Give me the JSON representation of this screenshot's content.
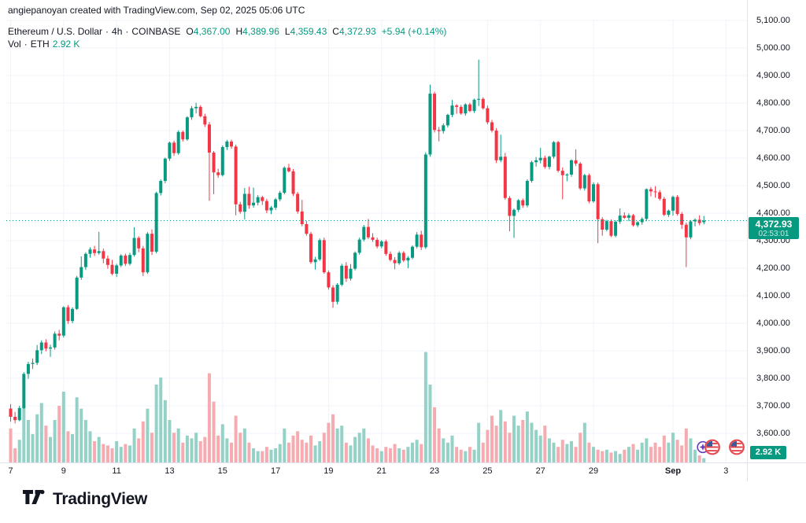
{
  "watermark": "angiepanoyan created with TradingView.com, Sep 02, 2025 05:06 UTC",
  "legend": {
    "symbol": "Ethereum / U.S. Dollar",
    "separator": "·",
    "interval": "4h",
    "exchange": "COINBASE",
    "ohlc": [
      {
        "k": "O",
        "v": "4,367.00"
      },
      {
        "k": "H",
        "v": "4,389.96"
      },
      {
        "k": "L",
        "v": "4,359.43"
      },
      {
        "k": "C",
        "v": "4,372.93"
      }
    ],
    "change": "+5.94 (+0.14%)"
  },
  "volume_row": {
    "label": "Vol",
    "separator": "·",
    "unit": "ETH",
    "value": "2.92 K"
  },
  "price_badge": {
    "price": "4,372.93",
    "countdown": "02:53:01"
  },
  "volume_badge": "2.92 K",
  "logo_text": "TradingView",
  "events": [
    {
      "icon": "sparkle-icon"
    },
    {
      "icon": "us-flag-icon"
    },
    {
      "icon": "us-flag-icon"
    }
  ],
  "colors": {
    "up": "#089981",
    "down": "#f23645",
    "vol_up": "#94d1c7",
    "vol_down": "#f5abb0",
    "grid": "#f0f3fa",
    "axis_border": "#e0e3eb",
    "text": "#131722",
    "accent": "#089981",
    "badge_bg": "#089981",
    "sparkle_purple": "#673ab7",
    "flag_ring": "#e5484f",
    "flag_blue": "#3c5b9b"
  },
  "chart_data": {
    "type": "candlestick",
    "title": "Ethereum / U.S. Dollar",
    "interval": "4h",
    "exchange": "COINBASE",
    "current_bar": {
      "open": 4367.0,
      "high": 4389.96,
      "low": 4359.43,
      "close": 4372.93,
      "change": "+5.94 (+0.14%)",
      "volume_eth": "2.92 K"
    },
    "last_price": 4372.93,
    "countdown": "02:53:01",
    "y_axis": {
      "min": 3600,
      "max": 5100,
      "step": 100,
      "labels": [
        "5,100.00",
        "5,000.00",
        "4,900.00",
        "4,800.00",
        "4,700.00",
        "4,600.00",
        "4,500.00",
        "4,400.00",
        "4,300.00",
        "4,200.00",
        "4,100.00",
        "4,000.00",
        "3,900.00",
        "3,800.00",
        "3,700.00",
        "3,600.00"
      ]
    },
    "x_axis": {
      "ticks": [
        {
          "label": "7",
          "i": 0,
          "bold": false
        },
        {
          "label": "9",
          "i": 12,
          "bold": false
        },
        {
          "label": "11",
          "i": 24,
          "bold": false
        },
        {
          "label": "13",
          "i": 36,
          "bold": false
        },
        {
          "label": "15",
          "i": 48,
          "bold": false
        },
        {
          "label": "17",
          "i": 60,
          "bold": false
        },
        {
          "label": "19",
          "i": 72,
          "bold": false
        },
        {
          "label": "21",
          "i": 84,
          "bold": false
        },
        {
          "label": "23",
          "i": 96,
          "bold": false
        },
        {
          "label": "25",
          "i": 108,
          "bold": false
        },
        {
          "label": "27",
          "i": 120,
          "bold": false
        },
        {
          "label": "29",
          "i": 132,
          "bold": false
        },
        {
          "label": "Sep",
          "i": 150,
          "bold": true
        },
        {
          "label": "3",
          "i": 162,
          "bold": false
        }
      ]
    },
    "candles_note": "4-hour OHLCV bars, Aug 7 00:00 UTC through Sep 2 04:00 UTC (current bar). Volume in thousands of ETH (estimated from bar heights).",
    "candles": [
      [
        3690,
        3706,
        3642,
        3660,
        24
      ],
      [
        3660,
        3678,
        3636,
        3648,
        10
      ],
      [
        3648,
        3700,
        3644,
        3692,
        16
      ],
      [
        3692,
        3822,
        3688,
        3816,
        40
      ],
      [
        3816,
        3860,
        3798,
        3852,
        30
      ],
      [
        3852,
        3872,
        3834,
        3856,
        20
      ],
      [
        3856,
        3921,
        3848,
        3902,
        34
      ],
      [
        3902,
        3938,
        3888,
        3930,
        42
      ],
      [
        3930,
        3942,
        3898,
        3908,
        26
      ],
      [
        3908,
        3922,
        3878,
        3912,
        18
      ],
      [
        3912,
        3970,
        3904,
        3962,
        30
      ],
      [
        3962,
        3976,
        3938,
        3955,
        40
      ],
      [
        3955,
        4062,
        3948,
        4058,
        50
      ],
      [
        4058,
        4066,
        3998,
        4008,
        22
      ],
      [
        4008,
        4058,
        4000,
        4052,
        20
      ],
      [
        4052,
        4172,
        4048,
        4166,
        46
      ],
      [
        4166,
        4243,
        4158,
        4204,
        38
      ],
      [
        4204,
        4258,
        4194,
        4252,
        30
      ],
      [
        4252,
        4276,
        4238,
        4268,
        22
      ],
      [
        4268,
        4281,
        4244,
        4255,
        15
      ],
      [
        4255,
        4332,
        4249,
        4262,
        18
      ],
      [
        4262,
        4271,
        4218,
        4235,
        13
      ],
      [
        4235,
        4246,
        4198,
        4212,
        12
      ],
      [
        4212,
        4230,
        4174,
        4180,
        10
      ],
      [
        4180,
        4216,
        4168,
        4210,
        15
      ],
      [
        4210,
        4251,
        4204,
        4246,
        11
      ],
      [
        4246,
        4253,
        4208,
        4216,
        13
      ],
      [
        4216,
        4256,
        4210,
        4248,
        12
      ],
      [
        4248,
        4349,
        4242,
        4310,
        24
      ],
      [
        4310,
        4316,
        4258,
        4272,
        17
      ],
      [
        4272,
        4281,
        4171,
        4185,
        29
      ],
      [
        4185,
        4331,
        4179,
        4325,
        38
      ],
      [
        4325,
        4341,
        4248,
        4260,
        21
      ],
      [
        4260,
        4478,
        4254,
        4473,
        55
      ],
      [
        4473,
        4522,
        4464,
        4517,
        60
      ],
      [
        4517,
        4602,
        4509,
        4598,
        44
      ],
      [
        4598,
        4660,
        4590,
        4656,
        30
      ],
      [
        4656,
        4663,
        4608,
        4618,
        21
      ],
      [
        4618,
        4701,
        4612,
        4695,
        24
      ],
      [
        4695,
        4700,
        4660,
        4668,
        14
      ],
      [
        4668,
        4752,
        4663,
        4748,
        19
      ],
      [
        4748,
        4789,
        4739,
        4781,
        17
      ],
      [
        4781,
        4801,
        4762,
        4786,
        21
      ],
      [
        4786,
        4792,
        4748,
        4752,
        15
      ],
      [
        4752,
        4761,
        4713,
        4722,
        18
      ],
      [
        4722,
        4731,
        4445,
        4620,
        63
      ],
      [
        4620,
        4626,
        4469,
        4548,
        43
      ],
      [
        4548,
        4561,
        4528,
        4538,
        19
      ],
      [
        4538,
        4646,
        4533,
        4640,
        27
      ],
      [
        4640,
        4666,
        4629,
        4660,
        17
      ],
      [
        4660,
        4667,
        4634,
        4642,
        14
      ],
      [
        4642,
        4649,
        4392,
        4432,
        33
      ],
      [
        4432,
        4441,
        4398,
        4405,
        21
      ],
      [
        4405,
        4491,
        4377,
        4470,
        24
      ],
      [
        4470,
        4496,
        4416,
        4428,
        14
      ],
      [
        4428,
        4493,
        4420,
        4438,
        10
      ],
      [
        4438,
        4466,
        4428,
        4458,
        8
      ],
      [
        4458,
        4463,
        4430,
        4444,
        8
      ],
      [
        4444,
        4452,
        4400,
        4410,
        11
      ],
      [
        4410,
        4426,
        4396,
        4420,
        9
      ],
      [
        4420,
        4455,
        4412,
        4450,
        10
      ],
      [
        4450,
        4481,
        4443,
        4474,
        13
      ],
      [
        4474,
        4570,
        4468,
        4565,
        24
      ],
      [
        4565,
        4579,
        4548,
        4552,
        14
      ],
      [
        4552,
        4560,
        4462,
        4470,
        19
      ],
      [
        4470,
        4477,
        4398,
        4406,
        22
      ],
      [
        4406,
        4448,
        4352,
        4360,
        16
      ],
      [
        4360,
        4372,
        4318,
        4325,
        14
      ],
      [
        4325,
        4332,
        4216,
        4222,
        19
      ],
      [
        4222,
        4241,
        4195,
        4232,
        12
      ],
      [
        4232,
        4308,
        4226,
        4302,
        15
      ],
      [
        4302,
        4311,
        4180,
        4185,
        21
      ],
      [
        4185,
        4192,
        4122,
        4130,
        28
      ],
      [
        4130,
        4138,
        4056,
        4078,
        34
      ],
      [
        4078,
        4146,
        4068,
        4140,
        24
      ],
      [
        4140,
        4216,
        4134,
        4209,
        26
      ],
      [
        4209,
        4222,
        4150,
        4162,
        14
      ],
      [
        4162,
        4215,
        4155,
        4198,
        12
      ],
      [
        4198,
        4261,
        4192,
        4256,
        18
      ],
      [
        4256,
        4311,
        4249,
        4304,
        21
      ],
      [
        4304,
        4357,
        4297,
        4350,
        24
      ],
      [
        4350,
        4379,
        4306,
        4312,
        17
      ],
      [
        4312,
        4327,
        4296,
        4303,
        12
      ],
      [
        4303,
        4311,
        4272,
        4279,
        10
      ],
      [
        4279,
        4302,
        4272,
        4297,
        8
      ],
      [
        4297,
        4304,
        4245,
        4252,
        11
      ],
      [
        4252,
        4261,
        4224,
        4230,
        10
      ],
      [
        4230,
        4240,
        4196,
        4218,
        13
      ],
      [
        4218,
        4262,
        4212,
        4256,
        10
      ],
      [
        4256,
        4262,
        4222,
        4228,
        9
      ],
      [
        4228,
        4244,
        4200,
        4238,
        11
      ],
      [
        4238,
        4283,
        4232,
        4278,
        14
      ],
      [
        4278,
        4331,
        4272,
        4322,
        16
      ],
      [
        4322,
        4336,
        4266,
        4276,
        13
      ],
      [
        4276,
        4621,
        4270,
        4613,
        78
      ],
      [
        4613,
        4867,
        4605,
        4834,
        55
      ],
      [
        4834,
        4841,
        4693,
        4702,
        39
      ],
      [
        4702,
        4713,
        4661,
        4698,
        24
      ],
      [
        4698,
        4726,
        4689,
        4719,
        17
      ],
      [
        4719,
        4761,
        4711,
        4757,
        14
      ],
      [
        4757,
        4811,
        4749,
        4791,
        19
      ],
      [
        4791,
        4796,
        4761,
        4786,
        11
      ],
      [
        4786,
        4793,
        4757,
        4762,
        9
      ],
      [
        4762,
        4799,
        4754,
        4795,
        8
      ],
      [
        4795,
        4801,
        4767,
        4771,
        11
      ],
      [
        4771,
        4816,
        4764,
        4812,
        9
      ],
      [
        4812,
        4958,
        4789,
        4815,
        28
      ],
      [
        4815,
        4821,
        4776,
        4781,
        14
      ],
      [
        4781,
        4791,
        4723,
        4730,
        23
      ],
      [
        4730,
        4739,
        4693,
        4700,
        33
      ],
      [
        4700,
        4709,
        4582,
        4592,
        26
      ],
      [
        4592,
        4685,
        4585,
        4605,
        37
      ],
      [
        4605,
        4619,
        4448,
        4455,
        29
      ],
      [
        4455,
        4462,
        4334,
        4390,
        21
      ],
      [
        4390,
        4417,
        4310,
        4412,
        33
      ],
      [
        4412,
        4451,
        4404,
        4447,
        26
      ],
      [
        4447,
        4453,
        4419,
        4428,
        30
      ],
      [
        4428,
        4523,
        4421,
        4517,
        36
      ],
      [
        4517,
        4590,
        4511,
        4585,
        28
      ],
      [
        4585,
        4604,
        4569,
        4592,
        23
      ],
      [
        4592,
        4637,
        4581,
        4601,
        19
      ],
      [
        4601,
        4609,
        4561,
        4568,
        26
      ],
      [
        4568,
        4609,
        4559,
        4605,
        17
      ],
      [
        4605,
        4662,
        4598,
        4658,
        14
      ],
      [
        4658,
        4663,
        4548,
        4554,
        11
      ],
      [
        4554,
        4566,
        4450,
        4538,
        16
      ],
      [
        4538,
        4545,
        4516,
        4540,
        13
      ],
      [
        4540,
        4595,
        4532,
        4592,
        15
      ],
      [
        4592,
        4632,
        4571,
        4580,
        11
      ],
      [
        4580,
        4586,
        4484,
        4490,
        21
      ],
      [
        4490,
        4543,
        4482,
        4538,
        28
      ],
      [
        4538,
        4544,
        4436,
        4443,
        14
      ],
      [
        4443,
        4512,
        4437,
        4505,
        11
      ],
      [
        4505,
        4511,
        4291,
        4378,
        9
      ],
      [
        4378,
        4385,
        4318,
        4340,
        8
      ],
      [
        4340,
        4376,
        4334,
        4371,
        9
      ],
      [
        4371,
        4377,
        4313,
        4318,
        7
      ],
      [
        4318,
        4374,
        4312,
        4369,
        8
      ],
      [
        4369,
        4417,
        4361,
        4391,
        6
      ],
      [
        4391,
        4403,
        4379,
        4383,
        9
      ],
      [
        4383,
        4399,
        4371,
        4392,
        11
      ],
      [
        4392,
        4397,
        4351,
        4356,
        13
      ],
      [
        4356,
        4371,
        4349,
        4367,
        9
      ],
      [
        4367,
        4385,
        4358,
        4379,
        14
      ],
      [
        4379,
        4490,
        4371,
        4487,
        17
      ],
      [
        4487,
        4495,
        4461,
        4479,
        11
      ],
      [
        4479,
        4498,
        4456,
        4476,
        14
      ],
      [
        4476,
        4484,
        4446,
        4452,
        11
      ],
      [
        4452,
        4459,
        4389,
        4394,
        19
      ],
      [
        4394,
        4413,
        4386,
        4409,
        14
      ],
      [
        4409,
        4464,
        4391,
        4459,
        21
      ],
      [
        4459,
        4466,
        4391,
        4397,
        16
      ],
      [
        4397,
        4404,
        4343,
        4358,
        12
      ],
      [
        4358,
        4366,
        4204,
        4312,
        24
      ],
      [
        4312,
        4375,
        4305,
        4370,
        17
      ],
      [
        4370,
        4381,
        4352,
        4376,
        9
      ],
      [
        4376,
        4392,
        4356,
        4364,
        5
      ],
      [
        4367,
        4390,
        4359,
        4373,
        3
      ]
    ]
  }
}
